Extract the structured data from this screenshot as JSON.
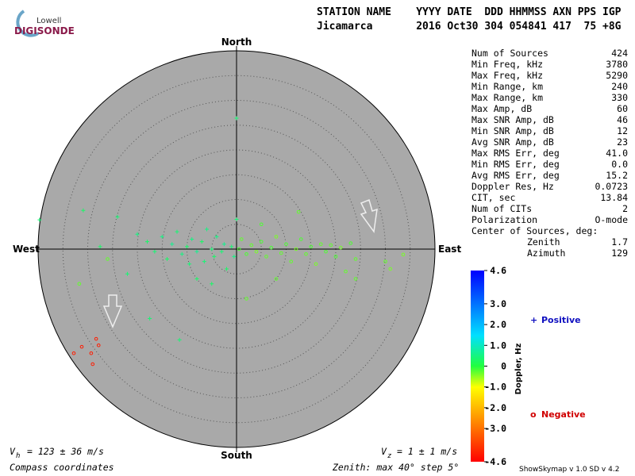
{
  "logo": {
    "top": "Lowell",
    "bottom": "DIGISONDE"
  },
  "header": {
    "line1": "STATION NAME    YYYY DATE  DDD HHMMSS AXN PPS IGP",
    "line2": "Jicamarca       2016 Oct30 304 054841 417  75 +8G"
  },
  "stats": [
    [
      "Num of Sources",
      "424"
    ],
    [
      "Min Freq, kHz",
      "3780"
    ],
    [
      "Max Freq, kHz",
      "5290"
    ],
    [
      "Min Range, km",
      "240"
    ],
    [
      "Max Range, km",
      "330"
    ],
    [
      "Max Amp, dB",
      "60"
    ],
    [
      "Max SNR Amp, dB",
      "46"
    ],
    [
      "Min SNR Amp, dB",
      "12"
    ],
    [
      "Avg SNR Amp, dB",
      "23"
    ],
    [
      "Max RMS Err, deg",
      "41.0"
    ],
    [
      "Min RMS Err, deg",
      "0.0"
    ],
    [
      "Avg RMS Err, deg",
      "15.2"
    ],
    [
      "Doppler Res, Hz",
      "0.0723"
    ],
    [
      "CIT, sec",
      "13.84"
    ],
    [
      "Num of CITs",
      "2"
    ],
    [
      "Polarization",
      "O-mode"
    ]
  ],
  "center": {
    "title": "Center of Sources, deg:",
    "rows": [
      [
        "Zenith",
        "1.7"
      ],
      [
        "Azimuth",
        "129"
      ]
    ]
  },
  "directions": {
    "north": "North",
    "south": "South",
    "west": "West",
    "east": "East"
  },
  "skymap": {
    "zenith_max": 40,
    "zenith_step": 5,
    "sources": [
      {
        "e": 0,
        "n": 26.4,
        "d": 0.4
      },
      {
        "e": -39.7,
        "n": 5.9,
        "d": 0.4
      },
      {
        "e": -30.9,
        "n": 7.8,
        "d": 0.3
      },
      {
        "e": -31.7,
        "n": -7,
        "d": -0.3
      },
      {
        "e": -24,
        "n": 6.5,
        "d": 0.4
      },
      {
        "e": -20,
        "n": 3,
        "d": 0.5
      },
      {
        "e": -18,
        "n": 1.5,
        "d": 0.3
      },
      {
        "e": -16.5,
        "n": -0.5,
        "d": 0.4
      },
      {
        "e": -15,
        "n": 2.5,
        "d": 0.5
      },
      {
        "e": -14,
        "n": -2,
        "d": 0.3
      },
      {
        "e": -13,
        "n": 1,
        "d": 0.6
      },
      {
        "e": -12,
        "n": 3.5,
        "d": 0.4
      },
      {
        "e": -11,
        "n": -1,
        "d": 0.5
      },
      {
        "e": -10,
        "n": 0.5,
        "d": 0.3
      },
      {
        "e": -9.5,
        "n": -3,
        "d": 0.4
      },
      {
        "e": -9,
        "n": 2,
        "d": 0.5
      },
      {
        "e": -8,
        "n": -0.5,
        "d": 0.6
      },
      {
        "e": -7,
        "n": 1.5,
        "d": 0.3
      },
      {
        "e": -6.5,
        "n": -2.5,
        "d": 0.4
      },
      {
        "e": -6,
        "n": 4,
        "d": 0.5
      },
      {
        "e": -5,
        "n": 0,
        "d": 0.4
      },
      {
        "e": -4.5,
        "n": -1.5,
        "d": 0.3
      },
      {
        "e": -4,
        "n": 2.5,
        "d": 0.5
      },
      {
        "e": -3,
        "n": -0.5,
        "d": 0.4
      },
      {
        "e": -2.5,
        "n": 1,
        "d": 0.6
      },
      {
        "e": -2,
        "n": -4,
        "d": 0.3
      },
      {
        "e": -1,
        "n": 0.5,
        "d": 0.4
      },
      {
        "e": -0.5,
        "n": -1.5,
        "d": 0.5
      },
      {
        "e": 0,
        "n": 6,
        "d": 0.4
      },
      {
        "e": 0.5,
        "n": 0,
        "d": -0.2
      },
      {
        "e": 1,
        "n": 2,
        "d": -0.3
      },
      {
        "e": 2,
        "n": -1,
        "d": -0.2
      },
      {
        "e": 3,
        "n": 0.8,
        "d": -0.3
      },
      {
        "e": 4,
        "n": -0.5,
        "d": -0.4
      },
      {
        "e": 5,
        "n": 1.5,
        "d": -0.2
      },
      {
        "e": 6,
        "n": -1.5,
        "d": -0.3
      },
      {
        "e": 7,
        "n": 0.3,
        "d": -0.2
      },
      {
        "e": 8,
        "n": 2.5,
        "d": -0.4
      },
      {
        "e": 9,
        "n": -0.8,
        "d": -0.3
      },
      {
        "e": 10,
        "n": 1,
        "d": -0.2
      },
      {
        "e": 11,
        "n": -2.5,
        "d": -0.3
      },
      {
        "e": 12,
        "n": 0,
        "d": -0.4
      },
      {
        "e": 13,
        "n": 2,
        "d": -0.2
      },
      {
        "e": 14,
        "n": -1,
        "d": -0.3
      },
      {
        "e": 15,
        "n": 0.5,
        "d": -0.2
      },
      {
        "e": 16,
        "n": -3,
        "d": -0.4
      },
      {
        "e": 17,
        "n": 1,
        "d": -0.3
      },
      {
        "e": 18,
        "n": -0.5,
        "d": -0.2
      },
      {
        "e": 19,
        "n": 0.8,
        "d": -0.3
      },
      {
        "e": 20,
        "n": -1.5,
        "d": -0.2
      },
      {
        "e": 21,
        "n": 0.3,
        "d": -0.4
      },
      {
        "e": 22,
        "n": -4.5,
        "d": -0.3
      },
      {
        "e": 23,
        "n": 1.2,
        "d": -0.2
      },
      {
        "e": 24,
        "n": -2,
        "d": -0.3
      },
      {
        "e": 12.5,
        "n": 7.5,
        "d": -0.3
      },
      {
        "e": 5,
        "n": 5,
        "d": -0.2
      },
      {
        "e": -5,
        "n": -7,
        "d": 0.3
      },
      {
        "e": -17.5,
        "n": -14,
        "d": 0.4
      },
      {
        "e": -11.5,
        "n": -18.3,
        "d": 0.4
      },
      {
        "e": 2,
        "n": -10,
        "d": -0.3
      },
      {
        "e": 30,
        "n": -2.5,
        "d": -0.3
      },
      {
        "e": 33.6,
        "n": -1.1,
        "d": -0.4
      },
      {
        "e": 31,
        "n": -4,
        "d": -0.4
      },
      {
        "e": 24,
        "n": -6,
        "d": -0.3
      },
      {
        "e": -22,
        "n": -5,
        "d": 0.4
      },
      {
        "e": -27.5,
        "n": 0.5,
        "d": 0.3
      },
      {
        "e": -26,
        "n": -2,
        "d": -0.3
      },
      {
        "e": -8,
        "n": -6,
        "d": 0.3
      },
      {
        "e": 8,
        "n": -6,
        "d": -0.3
      },
      {
        "e": -32.8,
        "n": -21,
        "d": -4.2
      },
      {
        "e": -31.2,
        "n": -19.7,
        "d": -4.2
      },
      {
        "e": -29.3,
        "n": -21,
        "d": -4.2
      },
      {
        "e": -28.3,
        "n": -18.1,
        "d": -4.2
      },
      {
        "e": -29,
        "n": -23.2,
        "d": -4.2
      },
      {
        "e": -27.8,
        "n": -19.4,
        "d": -4.2
      }
    ]
  },
  "colorbar": {
    "title": "Doppler, Hz",
    "lim": [
      -4.6,
      4.6
    ],
    "ticks": [
      {
        "value": 4.6,
        "label": "4.6"
      },
      {
        "value": 3,
        "label": "3.0"
      },
      {
        "value": 2,
        "label": "2.0"
      },
      {
        "value": 1,
        "label": "1.0"
      },
      0,
      {
        "value": -1,
        "label": "-1.0"
      },
      {
        "value": -2,
        "label": "-2.0"
      },
      {
        "value": -3,
        "label": "-3.0"
      },
      {
        "value": -4.6,
        "label": "-4.6"
      }
    ]
  },
  "legend": {
    "positive": {
      "symbol": "+",
      "label": "Positive"
    },
    "negative": {
      "symbol": "o",
      "label": "Negative"
    }
  },
  "footer": {
    "vh_symbol": "V",
    "vh_sub": "h",
    "vh_text": "= 123 ± 36 m/s",
    "vz_symbol": "V",
    "vz_sub": "z",
    "vz_text": "= 1 ± 1 m/s",
    "coords": "Compass coordinates",
    "zenith": "Zenith: max 40°  step 5°",
    "version": "ShowSkymap v 1.0   SD v 4.2"
  }
}
